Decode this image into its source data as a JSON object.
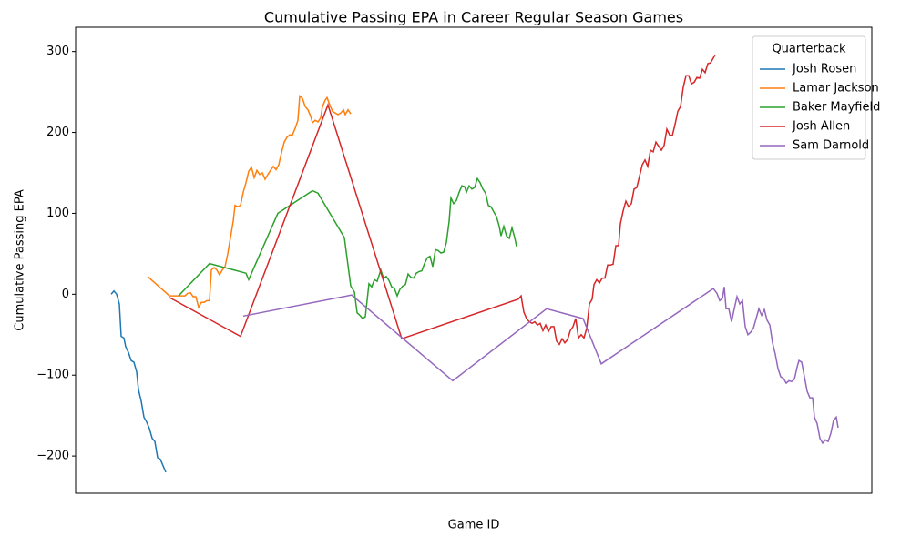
{
  "chart_data": {
    "type": "line",
    "title": "Cumulative Passing EPA in Career Regular Season Games",
    "x_label": "Game ID",
    "y_label": "Cumulative Passing EPA",
    "xlim": [
      -39,
      835
    ],
    "ylim": [
      -246,
      330
    ],
    "yticks": [
      {
        "value": -200,
        "label": "−200"
      },
      {
        "value": -100,
        "label": "−100"
      },
      0,
      100,
      200,
      300
    ],
    "legend_title": "Quarterback",
    "legend_loc": "upper right",
    "series": [
      {
        "name": "Josh Rosen",
        "color": "#1f77b4",
        "x": [
          0,
          3,
          6,
          9,
          11,
          14,
          16,
          19,
          22,
          25,
          28,
          30,
          33,
          36,
          39,
          42,
          45,
          48,
          51,
          54,
          57,
          60
        ],
        "values": [
          0,
          4,
          0,
          -12,
          -52,
          -54,
          -65,
          -72,
          -82,
          -84,
          -96,
          -118,
          -132,
          -152,
          -158,
          -166,
          -178,
          -182,
          -202,
          -204,
          -212,
          -220
        ]
      },
      {
        "name": "Lamar Jackson",
        "color": "#ff7f0e",
        "x": [
          40,
          64,
          76,
          81,
          84,
          87,
          90,
          93,
          96,
          99,
          102,
          105,
          108,
          110,
          113,
          116,
          119,
          122,
          125,
          128,
          131,
          134,
          136,
          139,
          142,
          145,
          148,
          151,
          154,
          157,
          160,
          163,
          166,
          169,
          172,
          175,
          178,
          181,
          184,
          187,
          190,
          193,
          196,
          199,
          202,
          205,
          207,
          210,
          213,
          216,
          219,
          221,
          224,
          227,
          230,
          232,
          235,
          237,
          240,
          243,
          246,
          249,
          252,
          255,
          257,
          260,
          263
        ],
        "values": [
          22,
          -2,
          -2,
          -2,
          1,
          2,
          -3,
          -3,
          -16,
          -10,
          -10,
          -8,
          -8,
          30,
          33,
          30,
          24,
          30,
          34,
          50,
          70,
          90,
          110,
          108,
          110,
          126,
          138,
          152,
          157,
          144,
          153,
          148,
          150,
          142,
          148,
          153,
          158,
          154,
          160,
          175,
          188,
          194,
          197,
          197,
          205,
          215,
          245,
          242,
          232,
          228,
          220,
          212,
          215,
          213,
          218,
          232,
          240,
          243,
          234,
          226,
          224,
          222,
          224,
          228,
          222,
          228,
          223
        ]
      },
      {
        "name": "Baker Mayfield",
        "color": "#2ca02c",
        "x": [
          74,
          108,
          148,
          151,
          183,
          221,
          227,
          256,
          263,
          267,
          270,
          273,
          276,
          279,
          283,
          286,
          289,
          292,
          296,
          299,
          302,
          305,
          308,
          311,
          314,
          317,
          320,
          323,
          326,
          329,
          332,
          335,
          338,
          341,
          344,
          347,
          350,
          353,
          356,
          359,
          362,
          365,
          368,
          371,
          373,
          376,
          379,
          382,
          385,
          388,
          390,
          393,
          396,
          399,
          402,
          405,
          408,
          411,
          414,
          417,
          420,
          423,
          426,
          428,
          431,
          434,
          437,
          440,
          443,
          445
        ],
        "values": [
          -2,
          38,
          26,
          18,
          100,
          128,
          125,
          70,
          10,
          3,
          -23,
          -26,
          -30,
          -28,
          13,
          9,
          18,
          16,
          30,
          20,
          22,
          17,
          9,
          7,
          -2,
          6,
          10,
          12,
          25,
          21,
          20,
          26,
          28,
          29,
          38,
          45,
          47,
          34,
          55,
          54,
          51,
          52,
          64,
          90,
          119,
          112,
          116,
          126,
          134,
          133,
          126,
          134,
          130,
          132,
          143,
          138,
          130,
          125,
          110,
          108,
          102,
          96,
          84,
          72,
          84,
          72,
          69,
          82,
          70,
          59
        ]
      },
      {
        "name": "Josh Allen",
        "color": "#d62728",
        "x": [
          64,
          142,
          238,
          319,
          447,
          450,
          453,
          456,
          459,
          462,
          465,
          468,
          471,
          474,
          477,
          480,
          483,
          486,
          489,
          492,
          495,
          498,
          501,
          504,
          507,
          510,
          513,
          516,
          519,
          522,
          525,
          528,
          530,
          533,
          536,
          539,
          542,
          545,
          548,
          551,
          554,
          557,
          559,
          562,
          565,
          568,
          571,
          574,
          577,
          580,
          583,
          586,
          589,
          592,
          595,
          598,
          601,
          604,
          607,
          610,
          613,
          616,
          619,
          622,
          625,
          628,
          631,
          634,
          637,
          640,
          643,
          646,
          649,
          652,
          655,
          658,
          661,
          663
        ],
        "values": [
          -4,
          -52,
          234,
          -55,
          -6,
          -2,
          -22,
          -30,
          -34,
          -36,
          -34,
          -38,
          -36,
          -45,
          -38,
          -46,
          -40,
          -40,
          -58,
          -62,
          -55,
          -60,
          -56,
          -45,
          -40,
          -30,
          -54,
          -50,
          -54,
          -42,
          -12,
          -6,
          12,
          18,
          14,
          20,
          20,
          36,
          36,
          37,
          60,
          60,
          87,
          103,
          115,
          108,
          112,
          130,
          132,
          146,
          160,
          166,
          158,
          178,
          176,
          188,
          183,
          178,
          184,
          204,
          197,
          196,
          210,
          226,
          232,
          256,
          270,
          270,
          260,
          262,
          268,
          267,
          278,
          274,
          285,
          286,
          292,
          296
        ]
      },
      {
        "name": "Sam Darnold",
        "color": "#9467bd",
        "x": [
          145,
          264,
          375,
          478,
          518,
          538,
          661,
          665,
          668,
          671,
          673,
          675,
          678,
          681,
          684,
          687,
          690,
          693,
          696,
          699,
          702,
          705,
          708,
          711,
          714,
          717,
          720,
          723,
          726,
          729,
          732,
          735,
          738,
          741,
          744,
          747,
          750,
          753,
          755,
          758,
          761,
          764,
          767,
          770,
          772,
          775,
          778,
          781,
          784,
          787,
          790,
          793,
          796,
          798
        ],
        "values": [
          -27,
          -1,
          -107,
          -18,
          -30,
          -86,
          7,
          1,
          -8,
          -5,
          9,
          -18,
          -18,
          -34,
          -18,
          -3,
          -12,
          -8,
          -40,
          -50,
          -47,
          -42,
          -30,
          -18,
          -26,
          -19,
          -32,
          -38,
          -60,
          -74,
          -92,
          -102,
          -104,
          -110,
          -107,
          -108,
          -105,
          -90,
          -82,
          -84,
          -102,
          -120,
          -128,
          -128,
          -152,
          -160,
          -178,
          -184,
          -180,
          -182,
          -172,
          -156,
          -152,
          -165
        ]
      }
    ]
  }
}
